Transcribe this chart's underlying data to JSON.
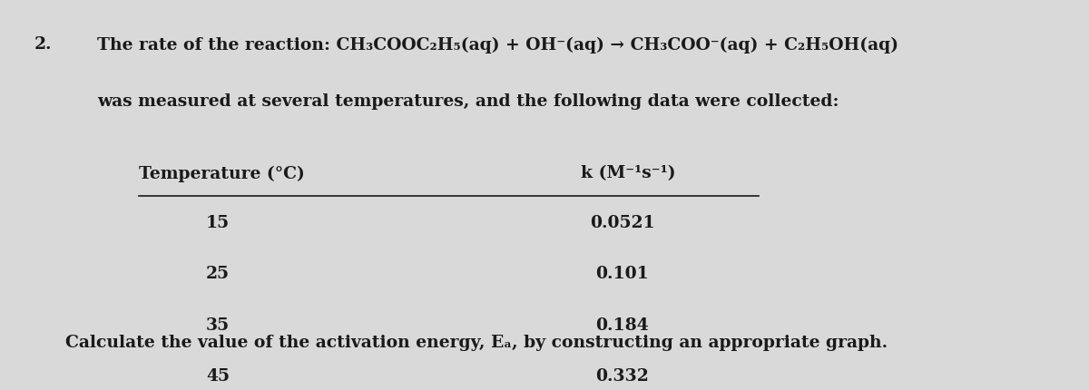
{
  "background_color": "#d9d9d9",
  "number": "2.",
  "line1": "The rate of the reaction: CH₃COOC₂H₅(aq) + OH⁻(aq) → CH₃COO⁻(aq) + C₂H₅OH(aq)",
  "line2": "was measured at several temperatures, and the following data were collected:",
  "col1_header": "Temperature (°C)",
  "col2_header": "k (M⁻¹s⁻¹)",
  "temperatures": [
    15,
    25,
    35,
    45
  ],
  "k_values": [
    "0.0521",
    "0.101",
    "0.184",
    "0.332"
  ],
  "footer": "Calculate the value of the activation energy, Eₐ, by constructing an appropriate graph.",
  "text_color": "#1a1a1a",
  "font_size_main": 13.5
}
